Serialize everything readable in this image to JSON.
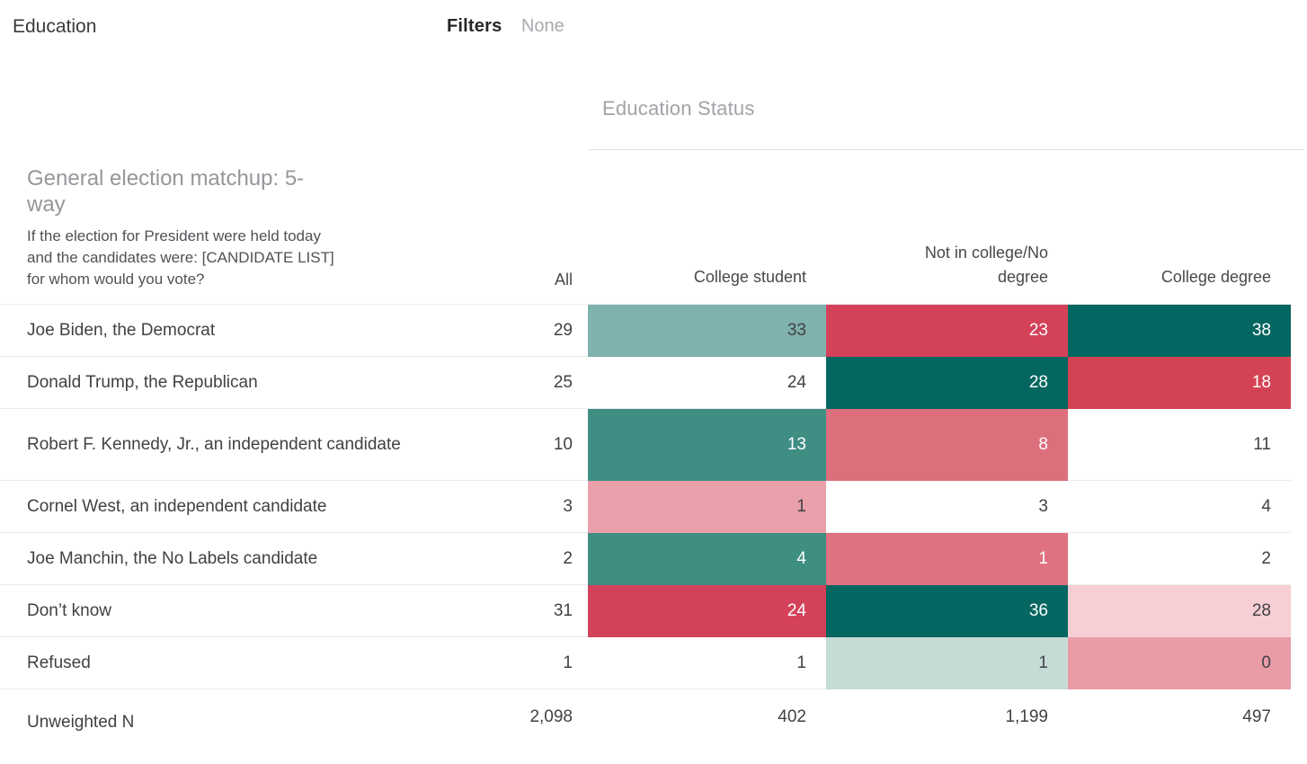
{
  "header": {
    "title": "Education",
    "filters_label": "Filters",
    "filters_value": "None"
  },
  "banner": {
    "label": "Education Status"
  },
  "question": {
    "title": "General election matchup: 5-way",
    "subtitle": "If the election for President were held today and the candidates were: [CANDIDATE LIST] for whom would you vote?"
  },
  "colors": {
    "dark_text": "#414146",
    "light_text": "#ffffff",
    "teal_dark": "#056660",
    "teal_medium": "#3f8e83",
    "teal_muted": "#7fb1ad",
    "teal_pale": "#c5dcd6",
    "red_strong": "#d4425a",
    "red_salmon": "#dd6f7c",
    "pink_light": "#e99ea8",
    "pink_pale": "#f6ced4"
  },
  "table": {
    "all_header": "All",
    "columns": [
      "College student",
      "Not in college/No degree",
      "College degree"
    ],
    "rows": [
      {
        "label": "Joe Biden, the Democrat",
        "all": "29",
        "tall": false,
        "cells": [
          {
            "value": "33",
            "bg": "#7fb1ad",
            "fg": "#414146"
          },
          {
            "value": "23",
            "bg": "#d4425a",
            "fg": "#ffffff"
          },
          {
            "value": "38",
            "bg": "#046660",
            "fg": "#ffffff"
          }
        ]
      },
      {
        "label": "Donald Trump, the Republican",
        "all": "25",
        "tall": false,
        "cells": [
          {
            "value": "24",
            "bg": null,
            "fg": "#414146"
          },
          {
            "value": "28",
            "bg": "#056660",
            "fg": "#ffffff"
          },
          {
            "value": "18",
            "bg": "#d44355",
            "fg": "#ffffff"
          }
        ]
      },
      {
        "label": "Robert F. Kennedy, Jr., an independent candidate",
        "all": "10",
        "tall": true,
        "cells": [
          {
            "value": "13",
            "bg": "#3f8e83",
            "fg": "#ffffff"
          },
          {
            "value": "8",
            "bg": "#dd6f7c",
            "fg": "#ffffff"
          },
          {
            "value": "11",
            "bg": null,
            "fg": "#414146"
          }
        ]
      },
      {
        "label": "Cornel West, an independent candidate",
        "all": "3",
        "tall": false,
        "cells": [
          {
            "value": "1",
            "bg": "#e9a0aa",
            "fg": "#414146"
          },
          {
            "value": "3",
            "bg": null,
            "fg": "#414146"
          },
          {
            "value": "4",
            "bg": null,
            "fg": "#414146"
          }
        ]
      },
      {
        "label": "Joe Manchin, the No Labels candidate",
        "all": "2",
        "tall": false,
        "cells": [
          {
            "value": "4",
            "bg": "#3f8e82",
            "fg": "#ffffff"
          },
          {
            "value": "1",
            "bg": "#de7280",
            "fg": "#ffffff"
          },
          {
            "value": "2",
            "bg": null,
            "fg": "#414146"
          }
        ]
      },
      {
        "label": "Don’t know",
        "all": "31",
        "tall": false,
        "cells": [
          {
            "value": "24",
            "bg": "#d4415a",
            "fg": "#ffffff"
          },
          {
            "value": "36",
            "bg": "#066661",
            "fg": "#ffffff"
          },
          {
            "value": "28",
            "bg": "#f6ced4",
            "fg": "#414146"
          }
        ]
      },
      {
        "label": "Refused",
        "all": "1",
        "tall": false,
        "cells": [
          {
            "value": "1",
            "bg": null,
            "fg": "#414146"
          },
          {
            "value": "1",
            "bg": "#c5dcd6",
            "fg": "#414146"
          },
          {
            "value": "0",
            "bg": "#e99ca6",
            "fg": "#414146"
          }
        ]
      }
    ],
    "footer": {
      "label": "Unweighted N",
      "all": "2,098",
      "values": [
        "402",
        "1,199",
        "497"
      ]
    }
  }
}
